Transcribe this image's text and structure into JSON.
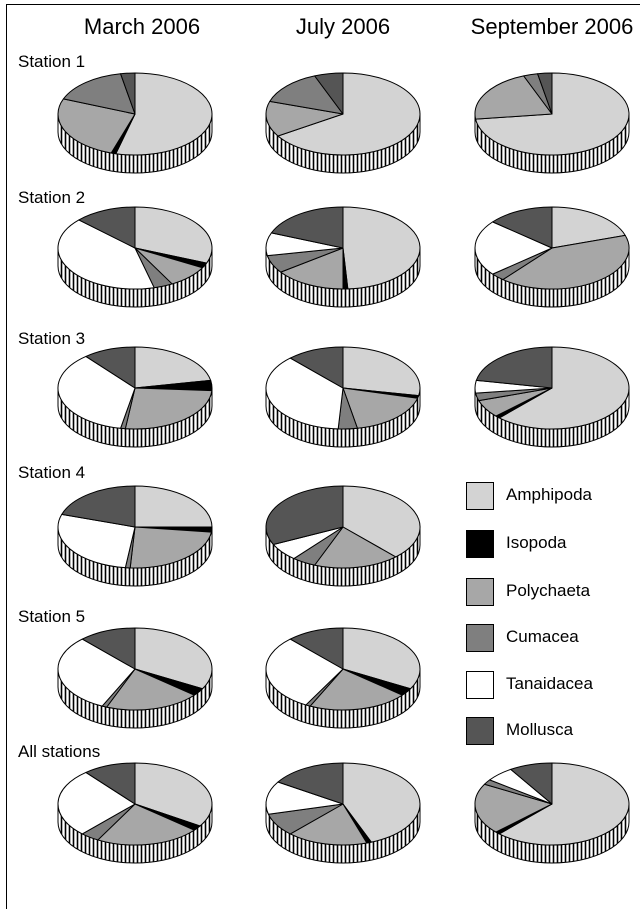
{
  "chart_data": {
    "type": "pie",
    "columns": [
      "March 2006",
      "July 2006",
      "September 2006"
    ],
    "rows": [
      "Station 1",
      "Station 2",
      "Station 3",
      "Station 4",
      "Station 5",
      "All stations"
    ],
    "legend": [
      {
        "name": "Amphipoda",
        "color": "#d3d3d3"
      },
      {
        "name": "Isopoda",
        "color": "#000000"
      },
      {
        "name": "Polychaeta",
        "color": "#a7a7a7"
      },
      {
        "name": "Cumacea",
        "color": "#7f7f7f"
      },
      {
        "name": "Tanaidacea",
        "color": "#ffffff"
      },
      {
        "name": "Mollusca",
        "color": "#555555"
      }
    ],
    "pies": [
      [
        {
          "values": {
            "Amphipoda": 54,
            "Isopoda": 1,
            "Polychaeta": 26,
            "Cumacea": 16,
            "Tanaidacea": 0,
            "Mollusca": 3
          }
        },
        {
          "values": {
            "Amphipoda": 66,
            "Isopoda": 0,
            "Polychaeta": 14,
            "Cumacea": 14,
            "Tanaidacea": 0,
            "Mollusca": 6
          }
        },
        {
          "values": {
            "Amphipoda": 73,
            "Isopoda": 0,
            "Polychaeta": 21,
            "Cumacea": 3,
            "Tanaidacea": 0,
            "Mollusca": 3
          }
        }
      ],
      [
        {
          "values": {
            "Amphipoda": 31,
            "Isopoda": 2,
            "Polychaeta": 9,
            "Cumacea": 4,
            "Tanaidacea": 41,
            "Mollusca": 13
          }
        },
        {
          "values": {
            "Amphipoda": 49,
            "Isopoda": 1,
            "Polychaeta": 15,
            "Cumacea": 7,
            "Tanaidacea": 9,
            "Mollusca": 19
          }
        },
        {
          "values": {
            "Amphipoda": 20,
            "Isopoda": 0,
            "Polychaeta": 41,
            "Cumacea": 3,
            "Tanaidacea": 22,
            "Mollusca": 14
          }
        }
      ],
      [
        {
          "values": {
            "Amphipoda": 22,
            "Isopoda": 4,
            "Polychaeta": 26,
            "Cumacea": 1,
            "Tanaidacea": 36,
            "Mollusca": 11
          }
        },
        {
          "values": {
            "Amphipoda": 28,
            "Isopoda": 1,
            "Polychaeta": 18,
            "Cumacea": 4,
            "Tanaidacea": 37,
            "Mollusca": 12
          }
        },
        {
          "values": {
            "Amphipoda": 62,
            "Isopoda": 1,
            "Polychaeta": 7,
            "Cumacea": 3,
            "Tanaidacea": 5,
            "Mollusca": 22
          }
        }
      ],
      [
        {
          "values": {
            "Amphipoda": 25,
            "Isopoda": 2,
            "Polychaeta": 24,
            "Cumacea": 1,
            "Tanaidacea": 28,
            "Mollusca": 20
          }
        },
        {
          "values": {
            "Amphipoda": 38,
            "Isopoda": 0,
            "Polychaeta": 18,
            "Cumacea": 5,
            "Tanaidacea": 7,
            "Mollusca": 32
          }
        },
        null
      ],
      [
        {
          "values": {
            "Amphipoda": 33,
            "Isopoda": 3,
            "Polychaeta": 20,
            "Cumacea": 1,
            "Tanaidacea": 31,
            "Mollusca": 12
          }
        },
        {
          "values": {
            "Amphipoda": 33,
            "Isopoda": 3,
            "Polychaeta": 21,
            "Cumacea": 1,
            "Tanaidacea": 30,
            "Mollusca": 12
          }
        },
        null
      ],
      [
        {
          "values": {
            "Amphipoda": 34,
            "Isopoda": 2,
            "Polychaeta": 22,
            "Cumacea": 4,
            "Tanaidacea": 27,
            "Mollusca": 11
          }
        },
        {
          "values": {
            "Amphipoda": 44,
            "Isopoda": 1,
            "Polychaeta": 17,
            "Cumacea": 9,
            "Tanaidacea": 13,
            "Mollusca": 16
          }
        },
        {
          "values": {
            "Amphipoda": 62,
            "Isopoda": 1,
            "Polychaeta": 20,
            "Cumacea": 2,
            "Tanaidacea": 6,
            "Mollusca": 9
          }
        }
      ]
    ]
  }
}
